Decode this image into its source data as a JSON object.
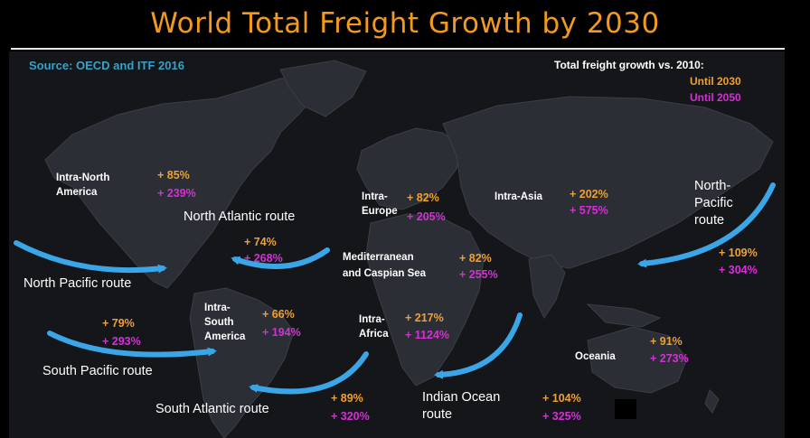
{
  "title": "World Total Freight Growth by 2030",
  "source": "Source: OECD and ITF 2016",
  "legend": {
    "title": "Total freight growth vs. 2010:",
    "until_2030": "Until 2030",
    "until_2050": "Until 2050"
  },
  "colors": {
    "title": "#f39a1e",
    "until_2030": "#f0a030",
    "until_2050": "#d62fd6",
    "route_arrow": "#3aa6e8",
    "source": "#3aa0c8"
  },
  "regions": {
    "intra_north_america": {
      "line1": "Intra-North",
      "line2": "America",
      "v2030": "+ 85%",
      "v2050": "+ 239%"
    },
    "intra_europe": {
      "line1": "Intra-",
      "line2": "Europe",
      "v2030": "+ 82%",
      "v2050": "+ 205%"
    },
    "intra_asia": {
      "line1": "Intra-Asia",
      "v2030": "+ 202%",
      "v2050": "+ 575%"
    },
    "mediterranean": {
      "line1": "Mediterranean",
      "line2": "and Caspian Sea",
      "v2030": "+ 82%",
      "v2050": "+ 255%"
    },
    "intra_south_america": {
      "line1": "Intra-",
      "line2": "South",
      "line3": "America",
      "v2030": "+ 66%",
      "v2050": "+ 194%"
    },
    "intra_africa": {
      "line1": "Intra-",
      "line2": "Africa",
      "v2030": "+ 217%",
      "v2050": "+ 1124%"
    },
    "oceania": {
      "line1": "Oceania",
      "v2030": "+ 91%",
      "v2050": "+ 273%"
    }
  },
  "routes": {
    "north_atlantic": {
      "label": "North Atlantic route",
      "v2030": "+ 74%",
      "v2050": "+ 268%"
    },
    "north_pacific": {
      "label": "North Pacific route"
    },
    "south_pacific": {
      "label": "South Pacific route",
      "v2030": "+ 79%",
      "v2050": "+ 293%"
    },
    "south_atlantic": {
      "label": "South Atlantic route",
      "v2030": "+ 89%",
      "v2050": "+ 320%"
    },
    "indian_ocean": {
      "line1": "Indian Ocean",
      "line2": "route",
      "v2030": "+ 104%",
      "v2050": "+ 325%"
    },
    "north_pacific_east": {
      "line1": "North-",
      "line2": "Pacific",
      "line3": "route",
      "v2030": "+ 109%",
      "v2050": "+ 304%"
    }
  }
}
